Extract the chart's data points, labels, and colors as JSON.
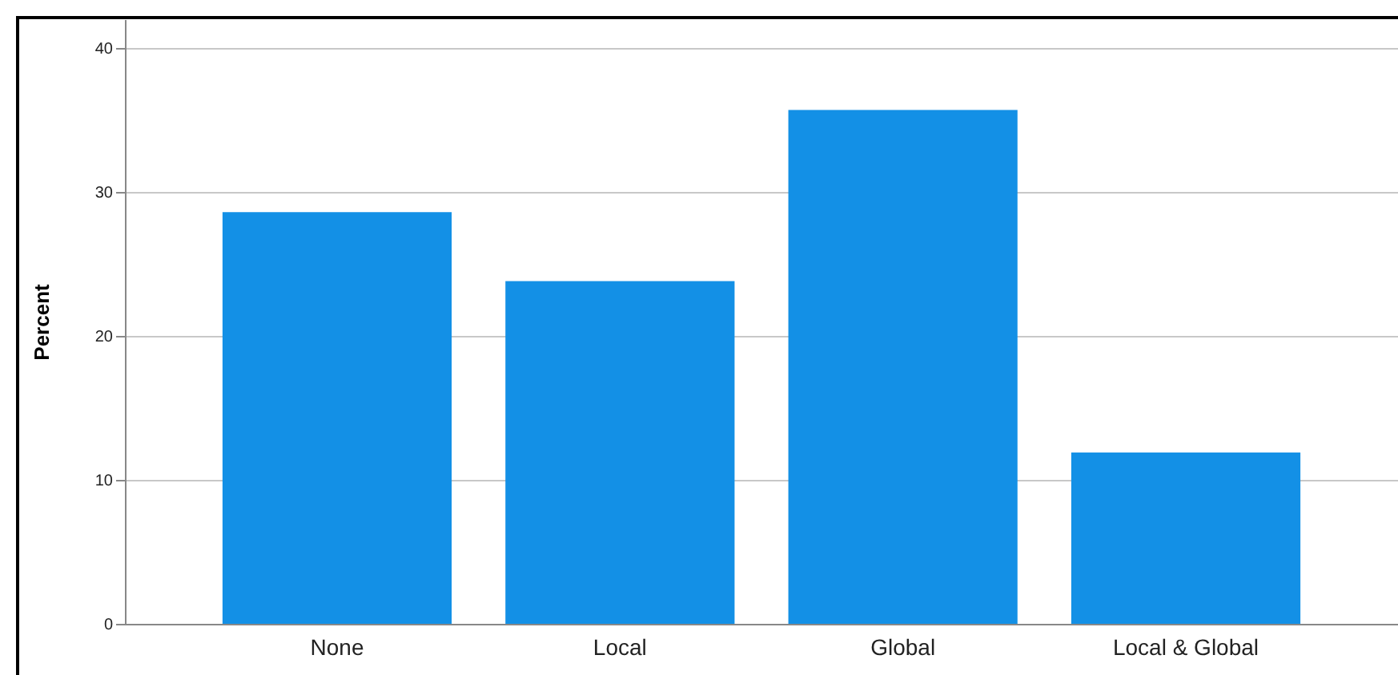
{
  "chart_data": {
    "type": "bar",
    "ylabel": "Percent",
    "categories": [
      "None",
      "Local",
      "Global",
      "Local & Global"
    ],
    "values": [
      28.6,
      23.8,
      35.7,
      11.9
    ],
    "color": "#1390e6",
    "ylim": [
      0,
      42
    ],
    "yticks": [
      0,
      10,
      20,
      30,
      40
    ],
    "grid": "y"
  }
}
